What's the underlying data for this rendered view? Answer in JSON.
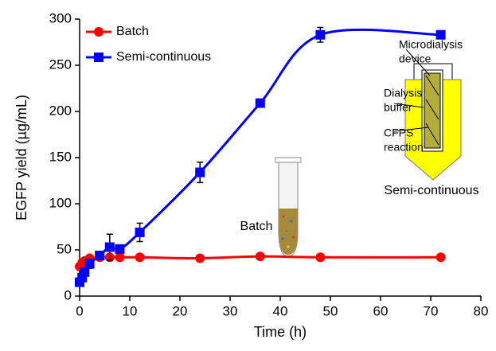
{
  "chart_data": {
    "type": "line",
    "x_label": "Time (h)",
    "y_label": "EGFP yield (µg/mL)",
    "xlim": [
      0,
      80
    ],
    "xticks": [
      0,
      10,
      20,
      30,
      40,
      50,
      60,
      70,
      80
    ],
    "ylim": [
      0,
      300
    ],
    "yticks": [
      0,
      50,
      100,
      150,
      200,
      250,
      300
    ],
    "legend": "upper left",
    "series": [
      {
        "name": "Batch",
        "color": "#ff0000",
        "marker": "circle",
        "x": [
          0,
          0.5,
          1,
          2,
          4,
          6,
          8,
          12,
          24,
          36,
          48,
          72
        ],
        "values": [
          32,
          36,
          38,
          41,
          42,
          42,
          42,
          42,
          41,
          43,
          42,
          42
        ]
      },
      {
        "name": "Semi-continuous",
        "color": "#0000ff",
        "marker": "square",
        "x": [
          0,
          0.5,
          1,
          2,
          4,
          6,
          8,
          12,
          24,
          36,
          48,
          72
        ],
        "values": [
          15,
          20,
          26,
          35,
          44,
          53,
          51,
          69,
          134,
          209,
          283,
          283
        ],
        "errors": [
          2,
          2,
          3,
          5,
          3,
          14,
          4,
          10,
          11,
          3,
          8,
          3
        ]
      }
    ],
    "annotations": {
      "batch": "Batch",
      "microdialysis": [
        "Microdialysis",
        "device"
      ],
      "buffer": [
        "Dialysis",
        "buffer"
      ],
      "cfps": [
        "CFPS",
        "reaction"
      ],
      "semi": "Semi-continuous"
    }
  }
}
